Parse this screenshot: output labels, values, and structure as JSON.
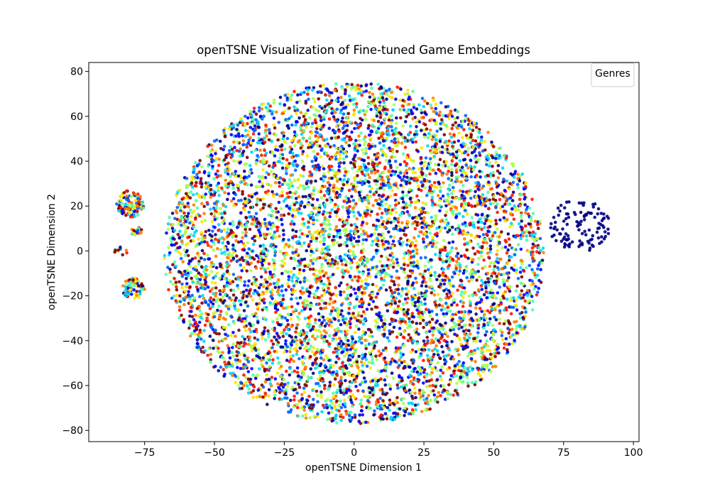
{
  "chart_data": {
    "type": "scatter",
    "title": "openTSNE Visualization of Fine-tuned Game Embeddings",
    "xlabel": "openTSNE Dimension 1",
    "ylabel": "openTSNE Dimension 2",
    "xlim": [
      -95,
      102
    ],
    "ylim": [
      -85,
      84
    ],
    "xticks": [
      -75,
      -50,
      -25,
      0,
      25,
      50,
      75,
      100
    ],
    "yticks": [
      -80,
      -60,
      -40,
      -20,
      0,
      20,
      40,
      60,
      80
    ],
    "xtick_labels": [
      "−75",
      "−50",
      "−25",
      "0",
      "25",
      "50",
      "75",
      "100"
    ],
    "ytick_labels": [
      "−80",
      "−60",
      "−40",
      "−20",
      "0",
      "20",
      "40",
      "60",
      "80"
    ],
    "grid": false,
    "legend": {
      "title": "Genres",
      "position": "upper right",
      "entries": []
    },
    "colormap": "jet",
    "palette": [
      "#00007f",
      "#0000ff",
      "#0063ff",
      "#00d4ff",
      "#4dffaa",
      "#aaff4d",
      "#ffe600",
      "#ff7b00",
      "#ff1300",
      "#7f0000"
    ],
    "clusters": [
      {
        "label": "main",
        "center": [
          0,
          -1
        ],
        "radius": [
          68,
          76
        ],
        "count": 6500,
        "colors": "mixed"
      },
      {
        "label": "isolated",
        "center": [
          81,
          11
        ],
        "radius": [
          11,
          12
        ],
        "count": 110,
        "colors": "#00007f"
      },
      {
        "label": "left-a",
        "center": [
          -80,
          21
        ],
        "radius": [
          5,
          6
        ],
        "count": 110,
        "colors": "mixed"
      },
      {
        "label": "left-b",
        "center": [
          -78,
          9
        ],
        "radius": [
          2,
          2
        ],
        "count": 25,
        "colors": "mixed"
      },
      {
        "label": "left-c",
        "center": [
          -79,
          -17
        ],
        "radius": [
          4,
          5
        ],
        "count": 70,
        "colors": "mixed"
      },
      {
        "label": "left-d",
        "center": [
          -83,
          0
        ],
        "radius": [
          3,
          2
        ],
        "count": 10,
        "colors": "mixed"
      }
    ]
  }
}
